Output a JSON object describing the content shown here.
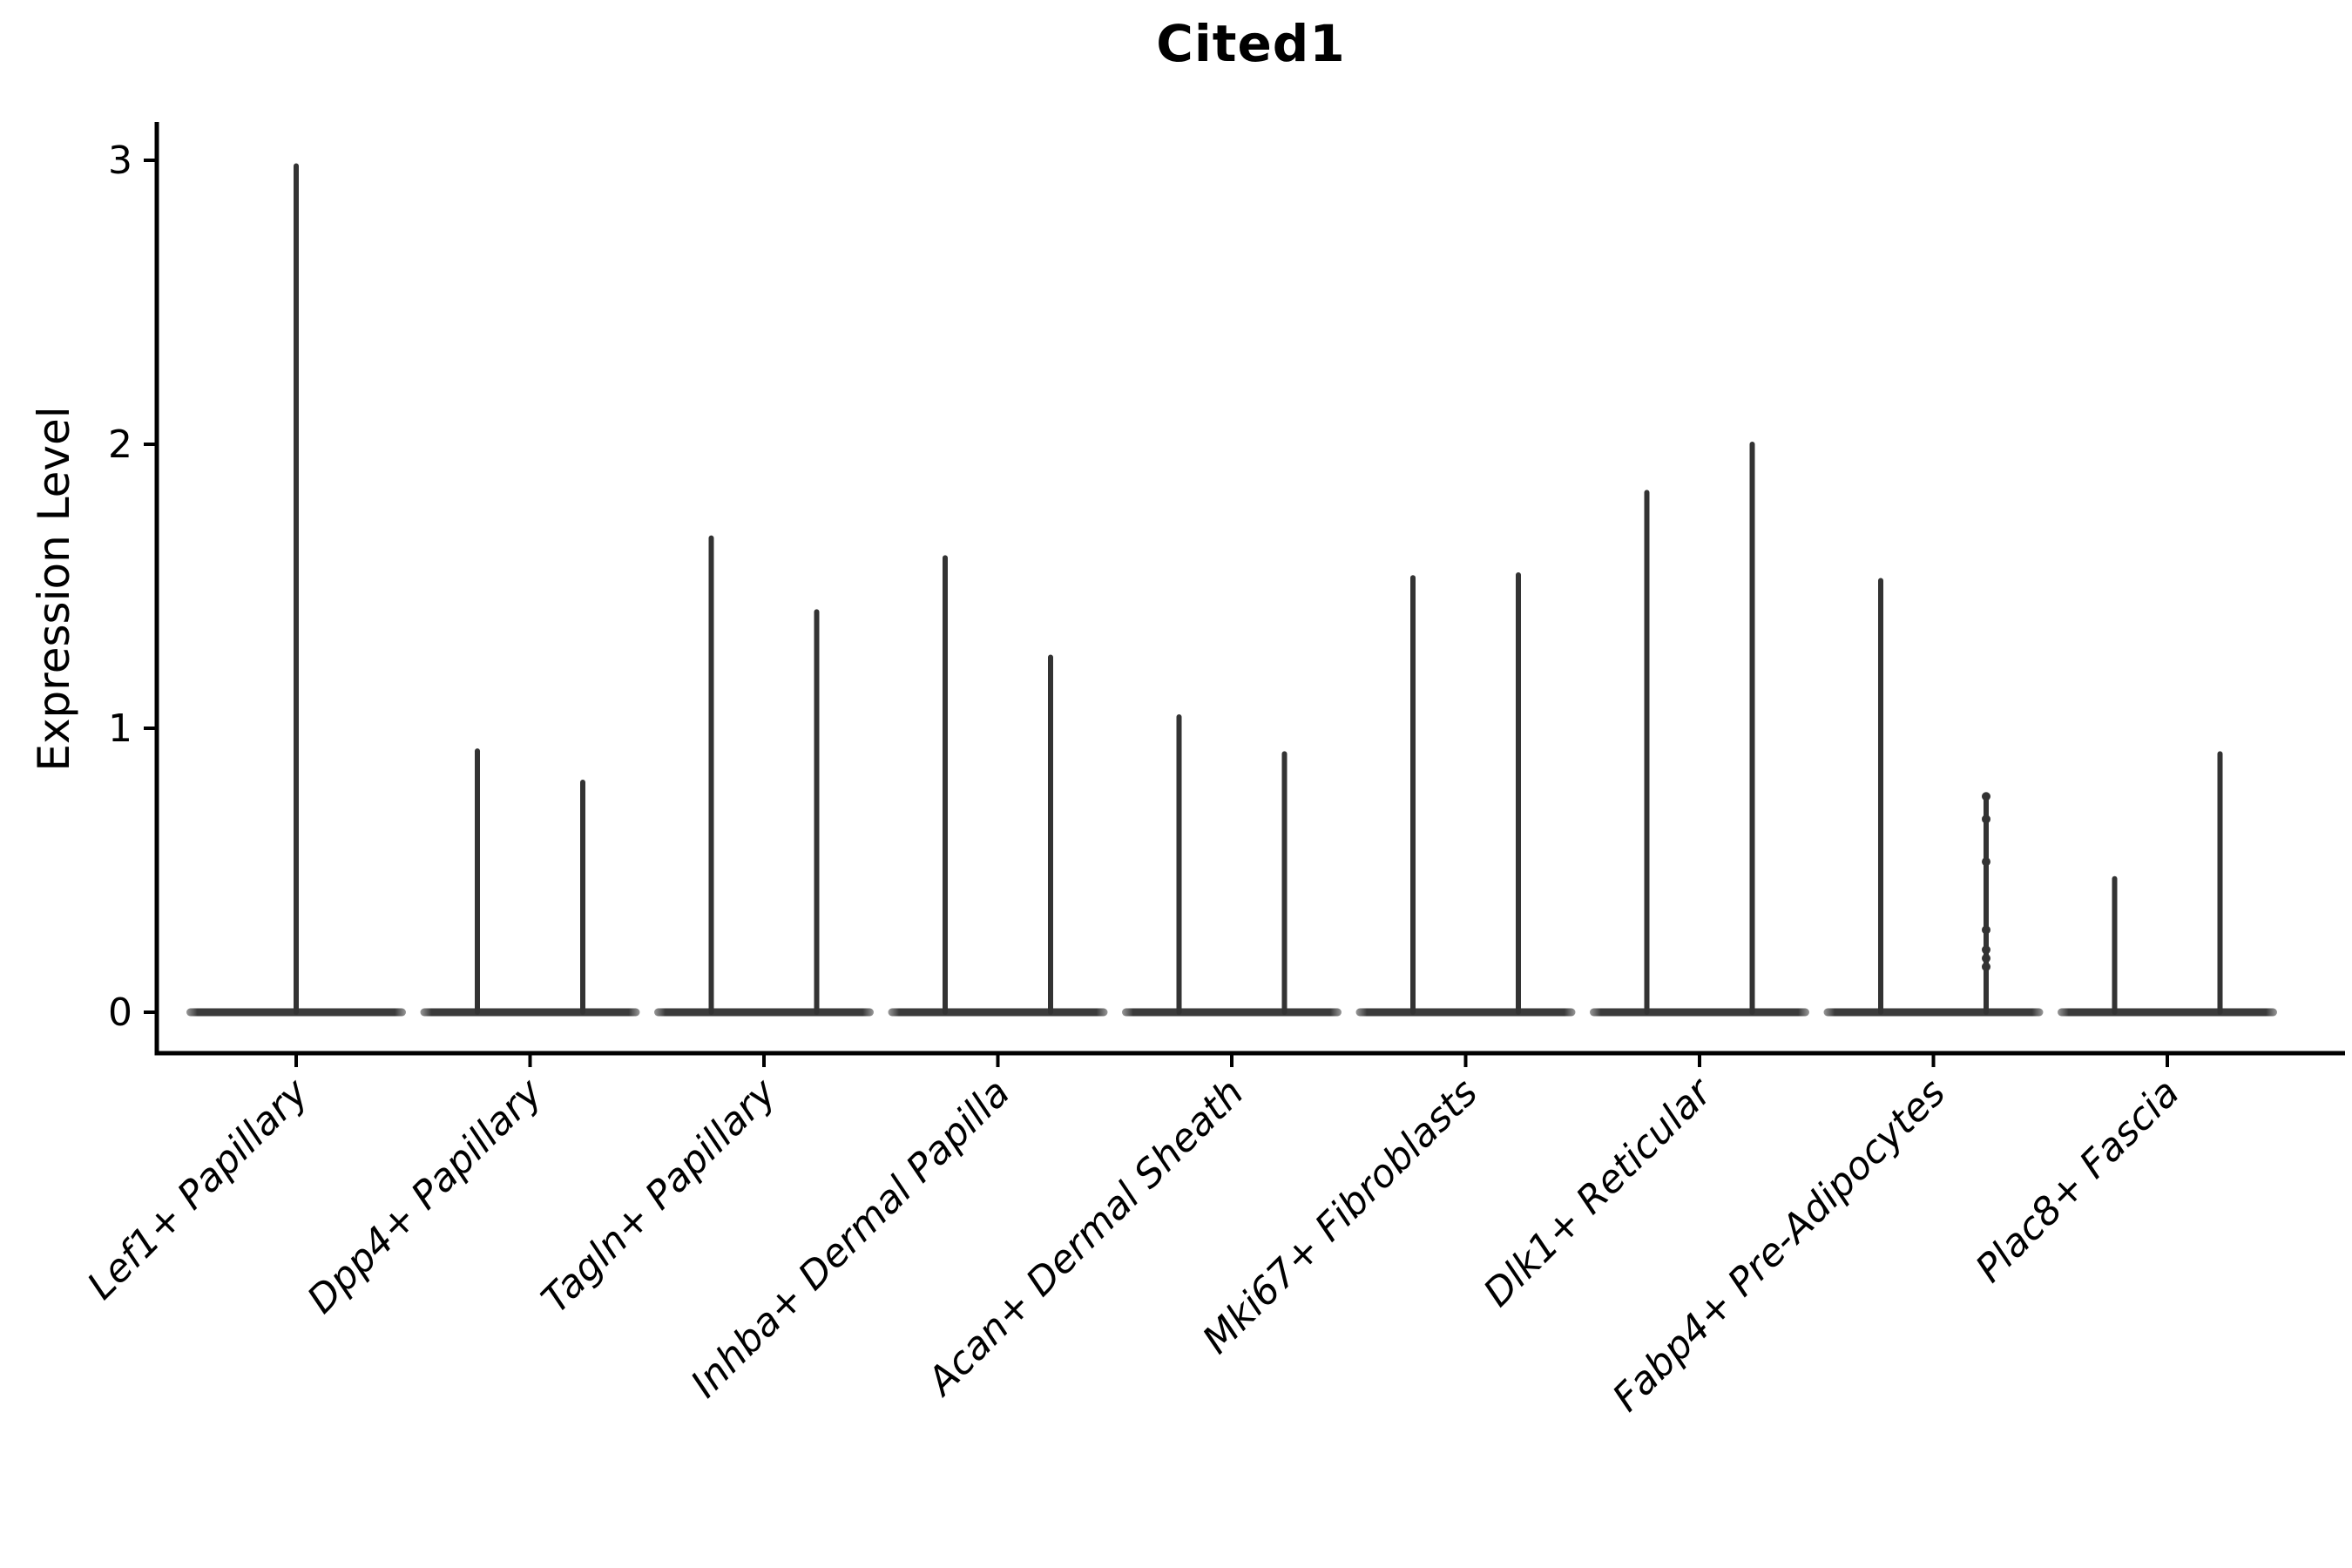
{
  "title": "Cited1",
  "chart_data": {
    "type": "violin",
    "title": "Cited1",
    "ylabel": "Expression Level",
    "xlabel": "",
    "yticks": [
      0,
      1,
      2,
      3
    ],
    "ylim": [
      -0.14,
      3.13
    ],
    "grid": false,
    "legend": "none",
    "baseline_value": 0,
    "categories": [
      "Lef1+ Papillary",
      "Dpp4+ Papillary",
      "Tagln+ Papillary",
      "Inhba+ Dermal Papilla",
      "Acan+ Dermal Sheath",
      "Mki67+ Fibroblasts",
      "Dlk1+ Reticular",
      "Fabp4+ Pre-Adipocytes",
      "Plac8+ Fascia"
    ],
    "groups": [
      {
        "category": "Lef1+ Papillary",
        "violins": [
          {
            "pos": "center",
            "max": 2.98
          }
        ]
      },
      {
        "category": "Dpp4+ Papillary",
        "violins": [
          {
            "pos": "left",
            "max": 0.92
          },
          {
            "pos": "right",
            "max": 0.81
          }
        ]
      },
      {
        "category": "Tagln+ Papillary",
        "violins": [
          {
            "pos": "left",
            "max": 1.67
          },
          {
            "pos": "right",
            "max": 1.41
          }
        ]
      },
      {
        "category": "Inhba+ Dermal Papilla",
        "violins": [
          {
            "pos": "left",
            "max": 1.6
          },
          {
            "pos": "right",
            "max": 1.25
          }
        ]
      },
      {
        "category": "Acan+ Dermal Sheath",
        "violins": [
          {
            "pos": "left",
            "max": 1.04
          },
          {
            "pos": "right",
            "max": 0.91
          }
        ]
      },
      {
        "category": "Mki67+ Fibroblasts",
        "violins": [
          {
            "pos": "left",
            "max": 1.53
          },
          {
            "pos": "right",
            "max": 1.54
          }
        ]
      },
      {
        "category": "Dlk1+ Reticular",
        "violins": [
          {
            "pos": "left",
            "max": 1.83
          },
          {
            "pos": "right",
            "max": 2.0
          }
        ]
      },
      {
        "category": "Fabp4+ Pre-Adipocytes",
        "violins": [
          {
            "pos": "left",
            "max": 1.52
          },
          {
            "pos": "right",
            "max": 0.76,
            "points": [
              0.76,
              0.68,
              0.53,
              0.29,
              0.22,
              0.19,
              0.16
            ]
          }
        ]
      },
      {
        "category": "Plac8+ Fascia",
        "violins": [
          {
            "pos": "left",
            "max": 0.47
          },
          {
            "pos": "right",
            "max": 0.91
          }
        ]
      }
    ],
    "colors": {
      "violin": "#333333",
      "violin_base": "#3b3b3b",
      "axis": "#000000",
      "text": "#000000"
    }
  }
}
